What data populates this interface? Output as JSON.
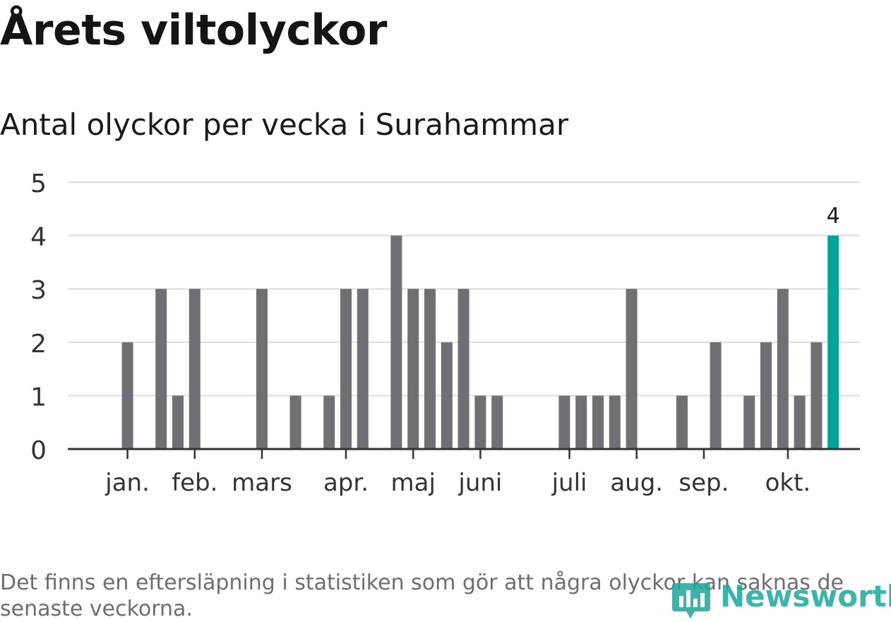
{
  "title": "Årets viltolyckor",
  "subtitle": "Antal olyckor per vecka i Surahammar",
  "footnote": "Det finns en eftersläpning i statistiken som gör att några olyckor kan saknas de senaste veckorna.",
  "brand": {
    "name": "Newsworthy",
    "icon": "bar-chart-pin-icon",
    "color": "#1aa79b"
  },
  "colors": {
    "bar": "#707074",
    "highlight": "#00a59a",
    "grid": "#dddddd",
    "axis": "#333333"
  },
  "chart_data": {
    "type": "bar",
    "title": "Årets viltolyckor",
    "subtitle": "Antal olyckor per vecka i Surahammar",
    "xlabel": "",
    "ylabel": "",
    "ylim": [
      0,
      5
    ],
    "yticks": [
      0,
      1,
      2,
      3,
      4,
      5
    ],
    "grid": true,
    "weeks": [
      1,
      2,
      3,
      4,
      5,
      6,
      7,
      8,
      9,
      10,
      11,
      12,
      13,
      14,
      15,
      16,
      17,
      18,
      19,
      20,
      21,
      22,
      23,
      24,
      25,
      26,
      27,
      28,
      29,
      30,
      31,
      32,
      33,
      34,
      35,
      36,
      37,
      38,
      39,
      40,
      41,
      42,
      43,
      44
    ],
    "values": [
      0,
      0,
      2,
      0,
      3,
      1,
      3,
      0,
      0,
      0,
      3,
      0,
      1,
      0,
      1,
      3,
      3,
      0,
      4,
      3,
      3,
      2,
      3,
      1,
      1,
      0,
      0,
      0,
      1,
      1,
      1,
      1,
      3,
      0,
      0,
      1,
      0,
      2,
      0,
      1,
      2,
      3,
      1,
      2
    ],
    "highlight": {
      "week": 45,
      "value": 4,
      "label": "4"
    },
    "month_labels": [
      {
        "label": "jan.",
        "week": 3.0
      },
      {
        "label": "feb.",
        "week": 7.0
      },
      {
        "label": "mars",
        "week": 11.0
      },
      {
        "label": "apr.",
        "week": 16.0
      },
      {
        "label": "maj",
        "week": 20.0
      },
      {
        "label": "juni",
        "week": 24.0
      },
      {
        "label": "juli",
        "week": 29.3
      },
      {
        "label": "aug.",
        "week": 33.3
      },
      {
        "label": "sep.",
        "week": 37.3
      },
      {
        "label": "okt.",
        "week": 42.3
      }
    ],
    "month_ticks": [
      3.0,
      7.0,
      11.0,
      16.0,
      20.0,
      24.0,
      29.3,
      33.3,
      37.3,
      42.3
    ]
  }
}
